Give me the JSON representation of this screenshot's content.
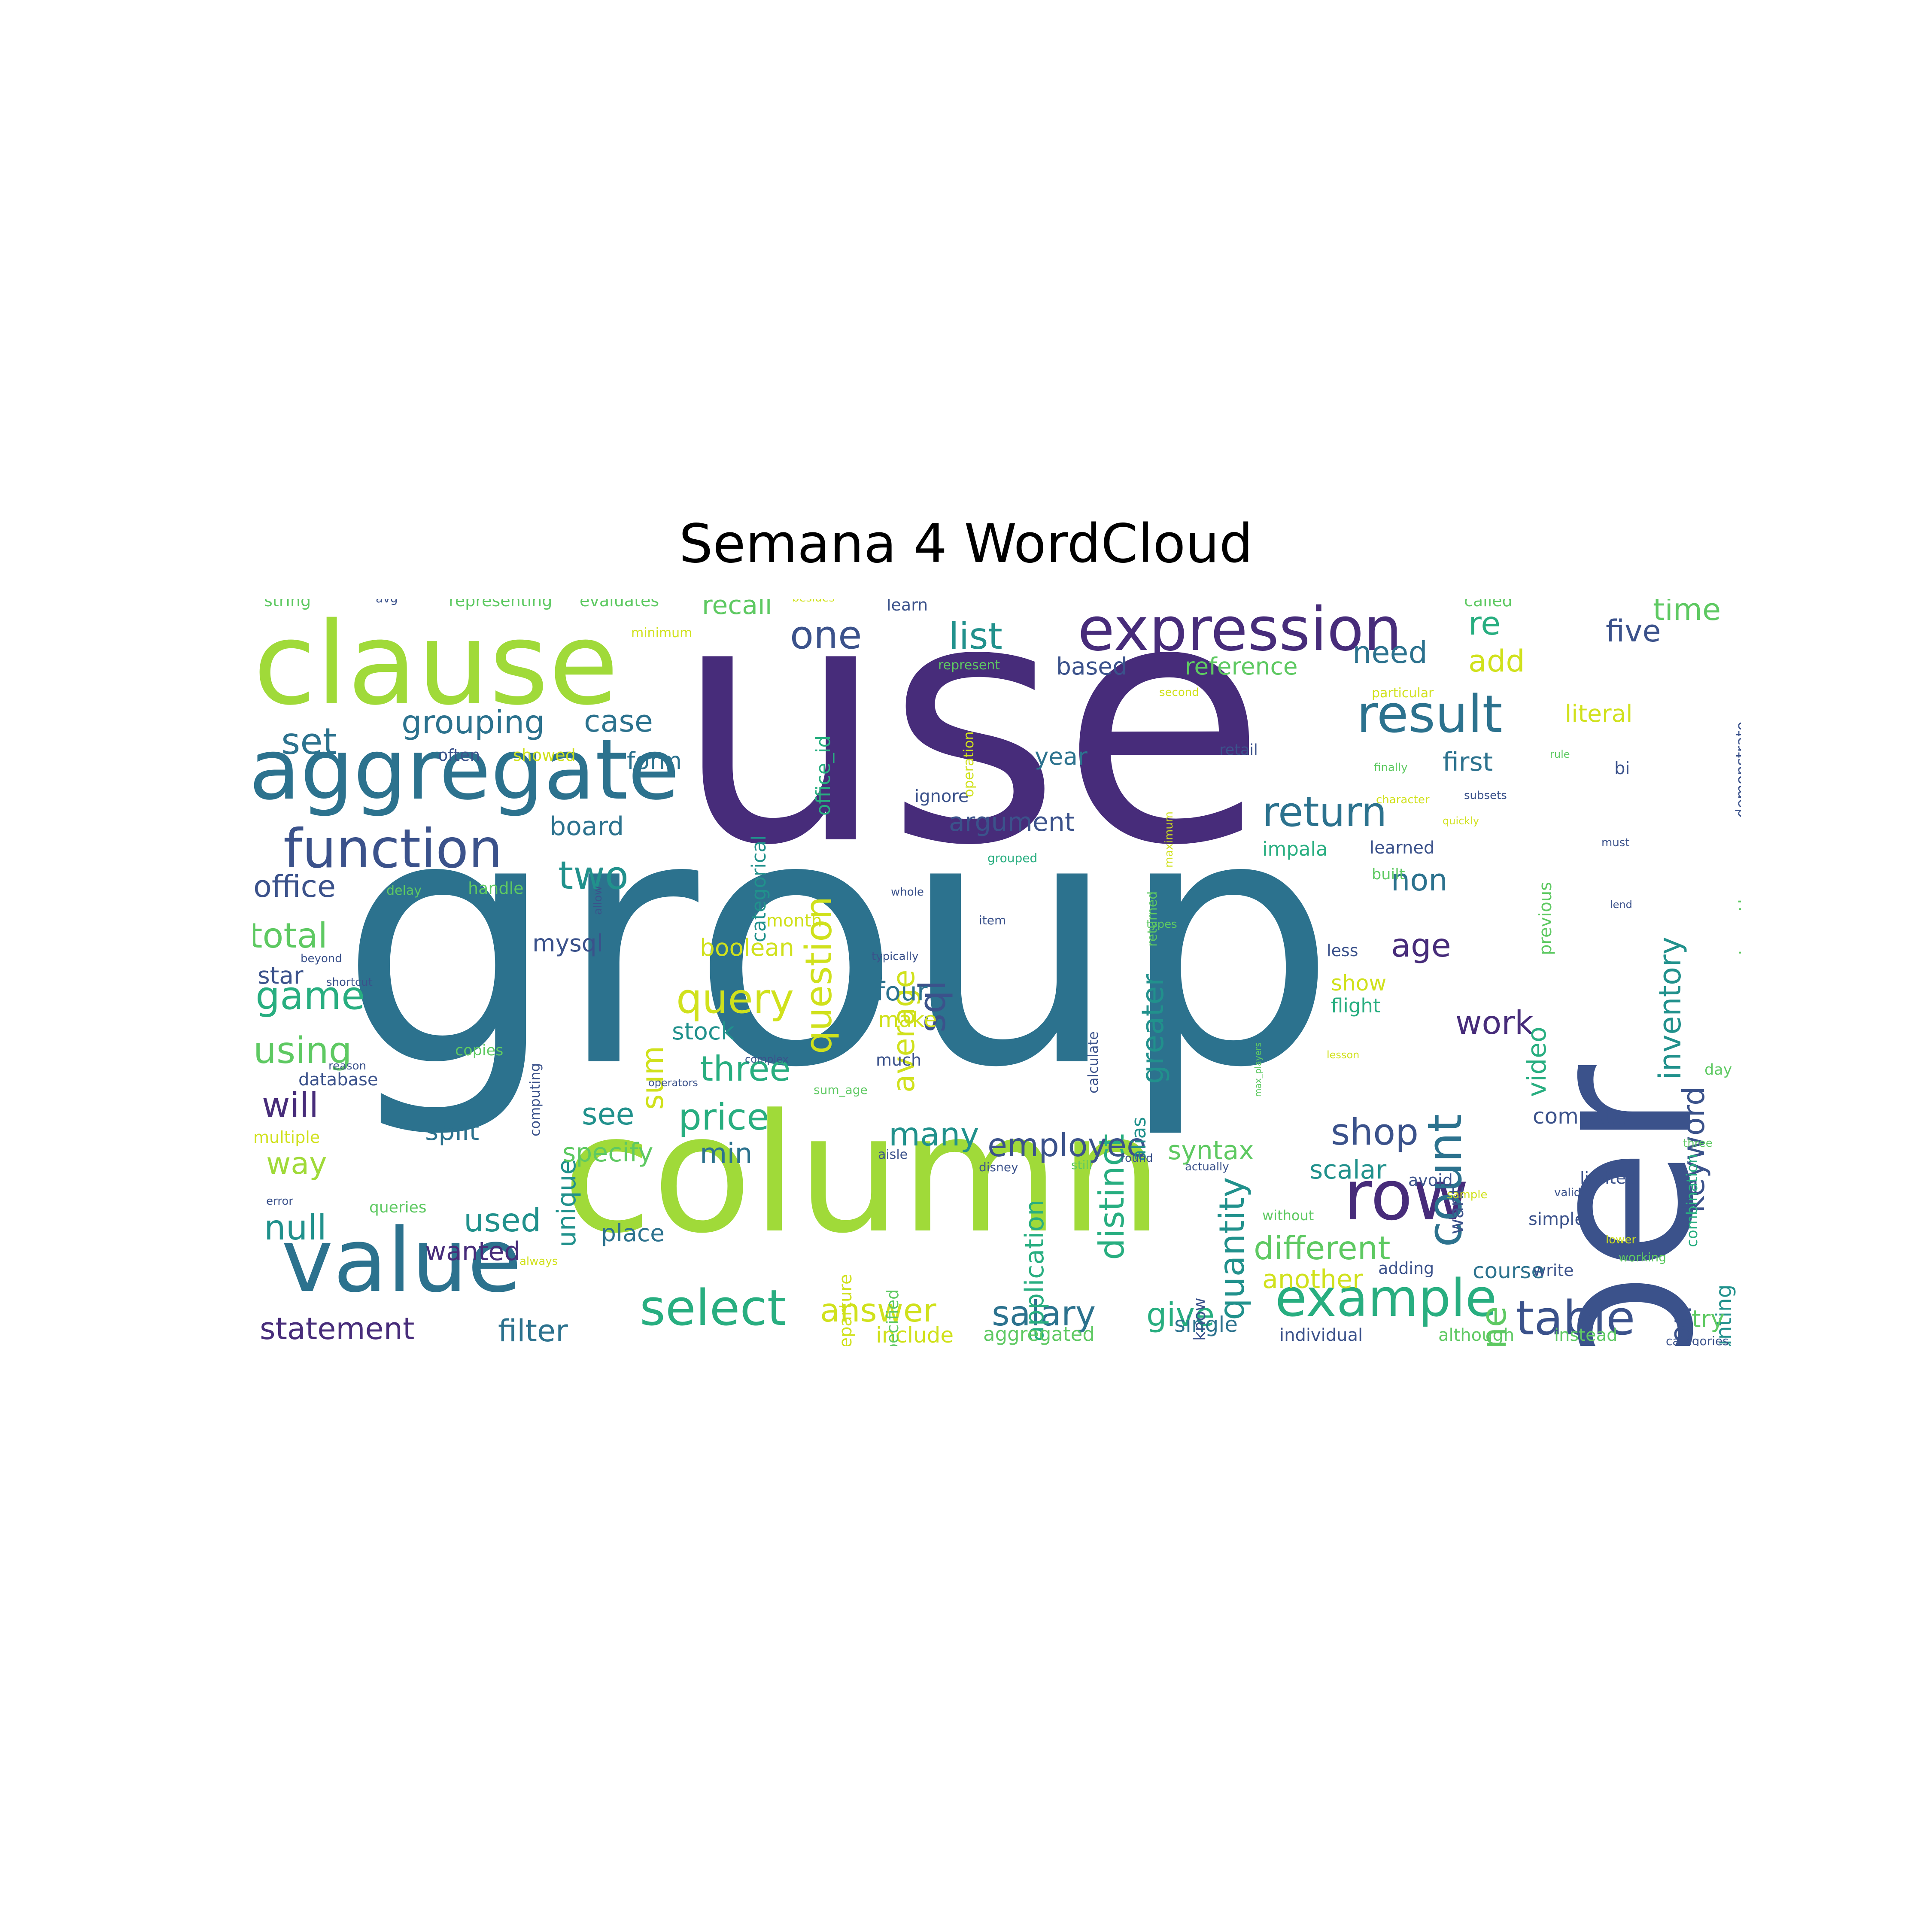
{
  "title": "Semana 4 WordCloud",
  "colors": {
    "dark_purple": "#472c7a",
    "indigo": "#3b528b",
    "teal_blue": "#2c728e",
    "teal": "#21918c",
    "green": "#28ae80",
    "light_green": "#5ec962",
    "lime": "#a0da39",
    "yellow": "#d0e11c"
  },
  "words": [
    {
      "text": "use",
      "color": "#472c7a"
    },
    {
      "text": "group",
      "color": "#2c728e"
    },
    {
      "text": "column",
      "color": "#a0da39"
    },
    {
      "text": "number",
      "color": "#3b528b"
    },
    {
      "text": "clause",
      "color": "#a0da39"
    },
    {
      "text": "aggregate",
      "color": "#2c728e"
    },
    {
      "text": "value",
      "color": "#2c728e"
    },
    {
      "text": "expression",
      "color": "#472c7a"
    },
    {
      "text": "function",
      "color": "#3b528b"
    },
    {
      "text": "row",
      "color": "#472c7a"
    },
    {
      "text": "result",
      "color": "#2c728e"
    },
    {
      "text": "example",
      "color": "#28ae80"
    },
    {
      "text": "select",
      "color": "#28ae80"
    },
    {
      "text": "table",
      "color": "#3b528b"
    },
    {
      "text": "count",
      "color": "#2c728e"
    },
    {
      "text": "return",
      "color": "#2c728e"
    },
    {
      "text": "one",
      "color": "#3b528b"
    },
    {
      "text": "list",
      "color": "#21918c"
    },
    {
      "text": "grouping",
      "color": "#2c728e"
    },
    {
      "text": "set",
      "color": "#2c728e"
    },
    {
      "text": "office",
      "color": "#3b528b"
    },
    {
      "text": "total",
      "color": "#5ec962"
    },
    {
      "text": "game",
      "color": "#28ae80"
    },
    {
      "text": "using",
      "color": "#5ec962"
    },
    {
      "text": "will",
      "color": "#472c7a"
    },
    {
      "text": "way",
      "color": "#a0da39"
    },
    {
      "text": "null",
      "color": "#21918c"
    },
    {
      "text": "statement",
      "color": "#472c7a"
    },
    {
      "text": "filter",
      "color": "#2c728e"
    },
    {
      "text": "answer",
      "color": "#d0e11c"
    },
    {
      "text": "salary",
      "color": "#2c728e"
    },
    {
      "text": "give",
      "color": "#28ae80"
    },
    {
      "text": "query",
      "color": "#d0e11c"
    },
    {
      "text": "price",
      "color": "#28ae80"
    },
    {
      "text": "three",
      "color": "#28ae80"
    },
    {
      "text": "two",
      "color": "#21918c"
    },
    {
      "text": "case",
      "color": "#2c728e"
    },
    {
      "text": "sql",
      "color": "#3b528b"
    },
    {
      "text": "average",
      "color": "#d0e11c"
    },
    {
      "text": "question",
      "color": "#d0e11c"
    },
    {
      "text": "sum",
      "color": "#d0e11c"
    },
    {
      "text": "unique",
      "color": "#21918c"
    },
    {
      "text": "distinct",
      "color": "#28ae80"
    },
    {
      "text": "greater",
      "color": "#21918c"
    },
    {
      "text": "quantity",
      "color": "#21918c"
    },
    {
      "text": "application",
      "color": "#28ae80"
    },
    {
      "text": "employee",
      "color": "#3b528b"
    },
    {
      "text": "syntax",
      "color": "#5ec962"
    },
    {
      "text": "many",
      "color": "#21918c"
    },
    {
      "text": "min",
      "color": "#2c728e"
    },
    {
      "text": "see",
      "color": "#21918c"
    },
    {
      "text": "specify",
      "color": "#5ec962"
    },
    {
      "text": "used",
      "color": "#21918c"
    },
    {
      "text": "wanted",
      "color": "#472c7a"
    },
    {
      "text": "split",
      "color": "#2c728e"
    },
    {
      "text": "place",
      "color": "#2c728e"
    },
    {
      "text": "different",
      "color": "#5ec962"
    },
    {
      "text": "another",
      "color": "#d0e11c"
    },
    {
      "text": "shop",
      "color": "#3b528b"
    },
    {
      "text": "scalar",
      "color": "#21918c"
    },
    {
      "text": "engine",
      "color": "#5ec962"
    },
    {
      "text": "work",
      "color": "#472c7a"
    },
    {
      "text": "age",
      "color": "#472c7a"
    },
    {
      "text": "non",
      "color": "#2c728e"
    },
    {
      "text": "need",
      "color": "#2c728e"
    },
    {
      "text": "add",
      "color": "#d0e11c"
    },
    {
      "text": "re",
      "color": "#28ae80"
    },
    {
      "text": "five",
      "color": "#3b528b"
    },
    {
      "text": "time",
      "color": "#5ec962"
    },
    {
      "text": "inventory",
      "color": "#21918c"
    },
    {
      "text": "keyword",
      "color": "#3b528b"
    },
    {
      "text": "aggregation",
      "color": "#3b528b"
    },
    {
      "text": "counting",
      "color": "#21918c"
    },
    {
      "text": "video",
      "color": "#28ae80"
    },
    {
      "text": "first",
      "color": "#2c728e"
    },
    {
      "text": "literal",
      "color": "#d0e11c"
    },
    {
      "text": "reference",
      "color": "#5ec962"
    },
    {
      "text": "based",
      "color": "#3b528b"
    },
    {
      "text": "year",
      "color": "#2c728e"
    },
    {
      "text": "argument",
      "color": "#3b528b"
    },
    {
      "text": "recall",
      "color": "#5ec962"
    },
    {
      "text": "form",
      "color": "#2c728e"
    },
    {
      "text": "board",
      "color": "#2c728e"
    },
    {
      "text": "mysql",
      "color": "#3b528b"
    },
    {
      "text": "boolean",
      "color": "#d0e11c"
    },
    {
      "text": "four",
      "color": "#2c728e"
    },
    {
      "text": "make",
      "color": "#d0e11c"
    },
    {
      "text": "stock",
      "color": "#21918c"
    },
    {
      "text": "categorical",
      "color": "#21918c"
    },
    {
      "text": "office_id",
      "color": "#28ae80"
    },
    {
      "text": "alias",
      "color": "#21918c"
    },
    {
      "text": "might",
      "color": "#21918c"
    },
    {
      "text": "course",
      "color": "#2c728e"
    },
    {
      "text": "show",
      "color": "#d0e11c"
    },
    {
      "text": "flight",
      "color": "#28ae80"
    },
    {
      "text": "compute",
      "color": "#3b528b"
    },
    {
      "text": "try",
      "color": "#5ec962"
    },
    {
      "text": "string",
      "color": "#5ec962"
    },
    {
      "text": "representing",
      "color": "#5ec962"
    },
    {
      "text": "evaluates",
      "color": "#5ec962"
    },
    {
      "text": "called",
      "color": "#5ec962"
    },
    {
      "text": "learn",
      "color": "#3b528b"
    },
    {
      "text": "star",
      "color": "#3b528b"
    },
    {
      "text": "include",
      "color": "#d0e11c"
    },
    {
      "text": "aggregated",
      "color": "#5ec962"
    },
    {
      "text": "single",
      "color": "#2c728e"
    },
    {
      "text": "individual",
      "color": "#3b528b"
    },
    {
      "text": "although",
      "color": "#5ec962"
    },
    {
      "text": "instead",
      "color": "#5ec962"
    },
    {
      "text": "categories",
      "color": "#3b528b"
    },
    {
      "text": "multiple",
      "color": "#d0e11c"
    },
    {
      "text": "database",
      "color": "#3b528b"
    },
    {
      "text": "copies",
      "color": "#5ec962"
    },
    {
      "text": "often",
      "color": "#3b528b"
    },
    {
      "text": "showed",
      "color": "#d0e11c"
    },
    {
      "text": "handle",
      "color": "#5ec962"
    },
    {
      "text": "impala",
      "color": "#28ae80"
    },
    {
      "text": "learned",
      "color": "#3b528b"
    },
    {
      "text": "month",
      "color": "#d0e11c"
    },
    {
      "text": "ignore",
      "color": "#3b528b"
    },
    {
      "text": "retail",
      "color": "#3b528b"
    },
    {
      "text": "together",
      "color": "#5ec962"
    },
    {
      "text": "demonstrate",
      "color": "#3b528b"
    },
    {
      "text": "previous",
      "color": "#5ec962"
    },
    {
      "text": "combination",
      "color": "#28ae80"
    },
    {
      "text": "day",
      "color": "#5ec962"
    },
    {
      "text": "want",
      "color": "#3b528b"
    },
    {
      "text": "simple",
      "color": "#3b528b"
    },
    {
      "text": "write",
      "color": "#3b528b"
    },
    {
      "text": "adding",
      "color": "#3b528b"
    },
    {
      "text": "avoid",
      "color": "#3b528b"
    },
    {
      "text": "know",
      "color": "#3b528b"
    },
    {
      "text": "departure",
      "color": "#d0e11c"
    },
    {
      "text": "specified",
      "color": "#5ec962"
    },
    {
      "text": "computing",
      "color": "#3b528b"
    },
    {
      "text": "queries",
      "color": "#5ec962"
    },
    {
      "text": "much",
      "color": "#3b528b"
    },
    {
      "text": "less",
      "color": "#3b528b"
    },
    {
      "text": "calculate",
      "color": "#3b528b"
    },
    {
      "text": "minimum",
      "color": "#d0e11c"
    },
    {
      "text": "limited",
      "color": "#3b528b"
    },
    {
      "text": "without",
      "color": "#5ec962"
    },
    {
      "text": "always",
      "color": "#d0e11c"
    },
    {
      "text": "working",
      "color": "#5ec962"
    },
    {
      "text": "delay",
      "color": "#5ec962"
    },
    {
      "text": "returned",
      "color": "#5ec962"
    },
    {
      "text": "operation",
      "color": "#d0e11c"
    },
    {
      "text": "built",
      "color": "#5ec962"
    },
    {
      "text": "reason",
      "color": "#3b528b"
    },
    {
      "text": "grouped",
      "color": "#28ae80"
    },
    {
      "text": "avg",
      "color": "#3b528b"
    },
    {
      "text": "besides",
      "color": "#d0e11c"
    },
    {
      "text": "represent",
      "color": "#5ec962"
    },
    {
      "text": "second",
      "color": "#d0e11c"
    },
    {
      "text": "particular",
      "color": "#d0e11c"
    },
    {
      "text": "maximum",
      "color": "#d0e11c"
    },
    {
      "text": "character",
      "color": "#d0e11c"
    },
    {
      "text": "subsets",
      "color": "#3b528b"
    },
    {
      "text": "typically",
      "color": "#3b528b"
    },
    {
      "text": "shortcut",
      "color": "#3b528b"
    },
    {
      "text": "beyond",
      "color": "#3b528b"
    },
    {
      "text": "item",
      "color": "#3b528b"
    },
    {
      "text": "whole",
      "color": "#3b528b"
    },
    {
      "text": "allow",
      "color": "#3b528b"
    },
    {
      "text": "complex",
      "color": "#3b528b"
    },
    {
      "text": "operators",
      "color": "#3b528b"
    },
    {
      "text": "sum_age",
      "color": "#5ec962"
    },
    {
      "text": "aisle",
      "color": "#3b528b"
    },
    {
      "text": "disney",
      "color": "#3b528b"
    },
    {
      "text": "still",
      "color": "#5ec962"
    },
    {
      "text": "round",
      "color": "#3b528b"
    },
    {
      "text": "actually",
      "color": "#3b528b"
    },
    {
      "text": "lesson",
      "color": "#d0e11c"
    },
    {
      "text": "max_players",
      "color": "#5ec962"
    },
    {
      "text": "rule",
      "color": "#5ec962"
    },
    {
      "text": "finally",
      "color": "#5ec962"
    },
    {
      "text": "quickly",
      "color": "#d0e11c"
    },
    {
      "text": "lend",
      "color": "#3b528b"
    },
    {
      "text": "types",
      "color": "#5ec962"
    },
    {
      "text": "valid",
      "color": "#3b528b"
    },
    {
      "text": "sample",
      "color": "#d0e11c"
    },
    {
      "text": "lower",
      "color": "#d0e11c"
    },
    {
      "text": "three",
      "color": "#5ec962"
    },
    {
      "text": "error",
      "color": "#3b528b"
    },
    {
      "text": "must",
      "color": "#3b528b"
    },
    {
      "text": "bi",
      "color": "#3b528b"
    }
  ]
}
